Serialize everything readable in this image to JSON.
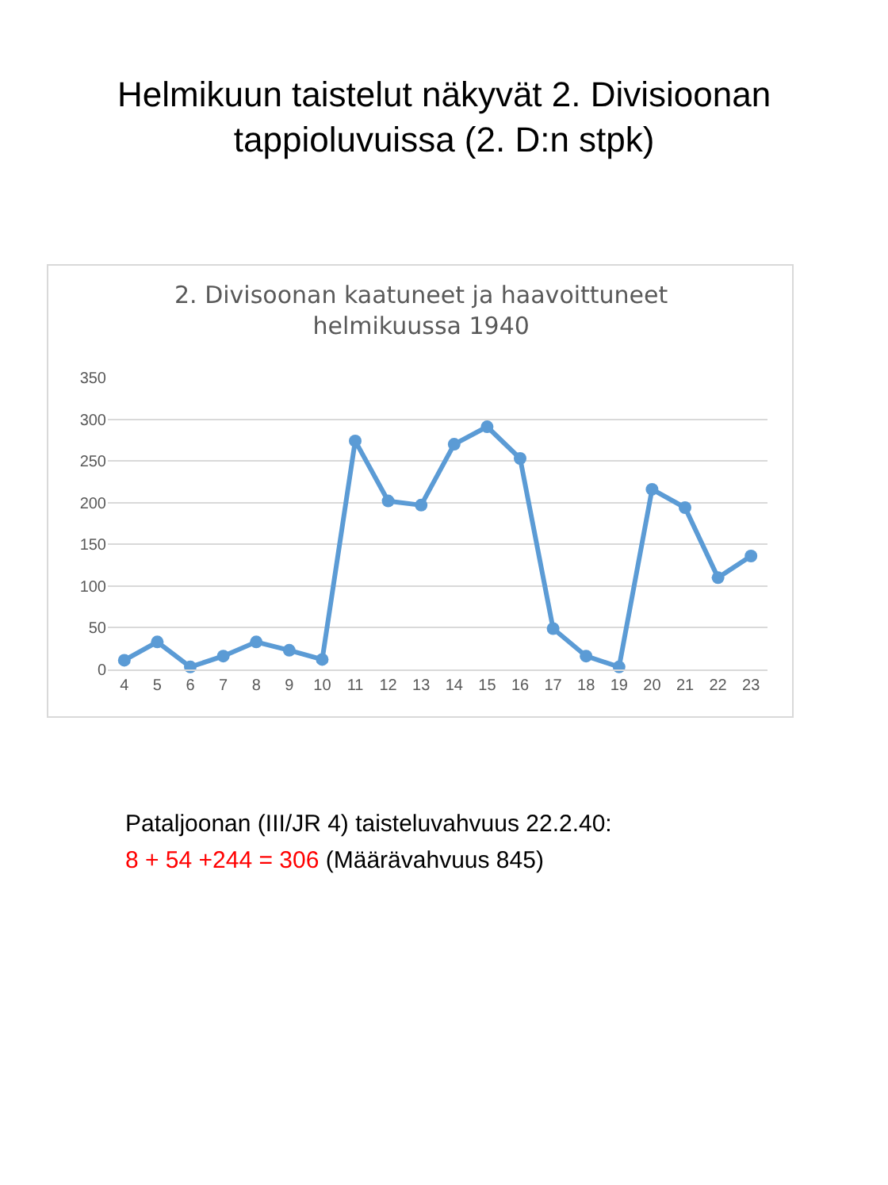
{
  "chart_data": {
    "type": "line",
    "title": "Helmikuun taistelut näkyvät 2. Divisioonan\ntappioluvuissa (2. D:n stpk)",
    "subtitle": "2. Divisoonan kaatuneet ja haavoittuneet\nhelmikuussa 1940",
    "annotations": [
      "Pataljoonan (III/JR 4) taisteluvahvuus 22.2.40:",
      "8 + 54 +244 = 306",
      "(Määrävahvuus 845)"
    ],
    "categories": [
      "4",
      "5",
      "6",
      "7",
      "8",
      "9",
      "10",
      "11",
      "12",
      "13",
      "14",
      "15",
      "16",
      "17",
      "18",
      "19",
      "20",
      "21",
      "22",
      "23"
    ],
    "series": [
      {
        "color": "#5b9bd5",
        "values": [
          11,
          33,
          3,
          16,
          33,
          23,
          12,
          274,
          202,
          197,
          270,
          291,
          253,
          49,
          16,
          3,
          216,
          194,
          110,
          136
        ]
      }
    ],
    "ylim": [
      0,
      350
    ],
    "yticks": [
      0,
      50,
      100,
      150,
      200,
      250,
      300,
      350
    ],
    "grid": "y",
    "legend": false,
    "marker": "circle",
    "line_style": "solid"
  }
}
